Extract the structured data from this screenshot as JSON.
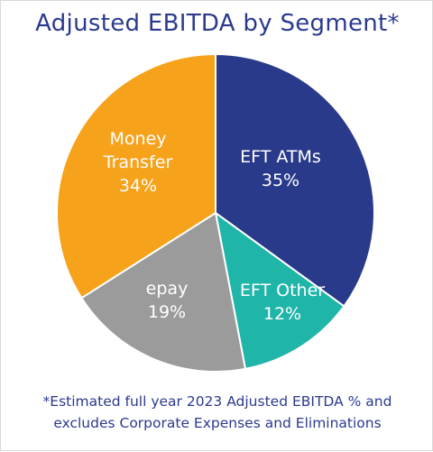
{
  "chart_data": {
    "type": "pie",
    "title": "Adjusted EBITDA by Segment*",
    "slices": [
      {
        "label_lines": [
          "EFT ATMs"
        ],
        "value": 35,
        "value_label": "35%",
        "color": "#2a3a8a"
      },
      {
        "label_lines": [
          "EFT Other"
        ],
        "value": 12,
        "value_label": "12%",
        "color": "#20b5a9"
      },
      {
        "label_lines": [
          "epay"
        ],
        "value": 19,
        "value_label": "19%",
        "color": "#9b9b9b"
      },
      {
        "label_lines": [
          "Money",
          "Transfer"
        ],
        "value": 34,
        "value_label": "34%",
        "color": "#f7a21b"
      }
    ],
    "footnote_lines": [
      "*Estimated full year 2023 Adjusted EBITDA % and",
      "excludes Corporate Expenses and Eliminations"
    ]
  }
}
